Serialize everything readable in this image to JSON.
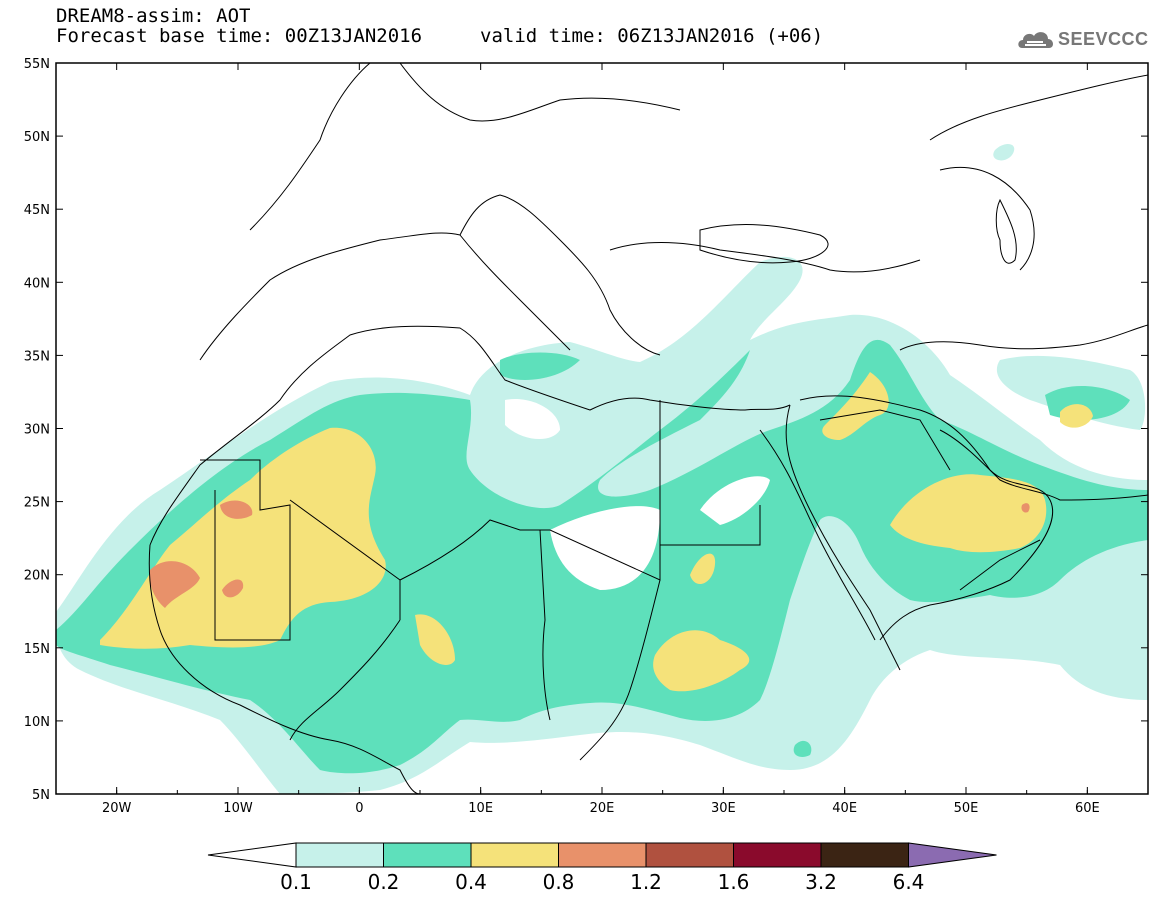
{
  "header": {
    "line1": "DREAM8-assim: AOT",
    "line2_base": "Forecast base time: 00Z13JAN2016",
    "line2_valid": "valid time: 06Z13JAN2016 (+06)"
  },
  "logo": {
    "text": "SEEVCCC",
    "icon": "cloud-logo-icon"
  },
  "axes": {
    "lat_labels": [
      "55N",
      "50N",
      "45N",
      "40N",
      "35N",
      "30N",
      "25N",
      "20N",
      "15N",
      "10N",
      "5N"
    ],
    "lon_labels": [
      "20W",
      "10W",
      "0",
      "10E",
      "20E",
      "30E",
      "40E",
      "50E",
      "60E"
    ]
  },
  "legend": {
    "labels": [
      "0.1",
      "0.2",
      "0.4",
      "0.8",
      "1.2",
      "1.6",
      "3.2",
      "6.4"
    ],
    "colors": [
      "#ffffff",
      "#c6f1ea",
      "#5ee0bb",
      "#f5e27a",
      "#e8916a",
      "#b0513f",
      "#8a0a2c",
      "#3b2414",
      "#8b6bb1"
    ]
  },
  "colors": {
    "aot_0_1": "#c6f1ea",
    "aot_0_2": "#5ee0bb",
    "aot_0_4": "#f5e27a",
    "aot_0_8": "#e8916a",
    "aot_1_2": "#b0513f"
  }
}
